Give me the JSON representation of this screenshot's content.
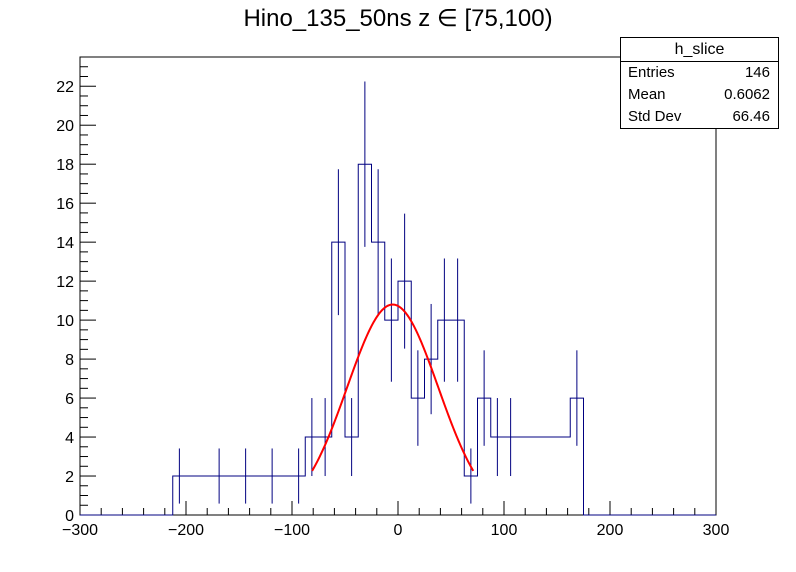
{
  "title": "Hino_135_50ns z  ∈ [75,100)",
  "stats": {
    "name": "h_slice",
    "rows": [
      {
        "label": "Entries",
        "value": "146"
      },
      {
        "label": "Mean",
        "value": "0.6062"
      },
      {
        "label": "Std Dev",
        "value": "66.46"
      }
    ]
  },
  "chart_data": {
    "type": "histogram",
    "xlim": [
      -300,
      300
    ],
    "ylim": [
      0,
      23.5
    ],
    "xticks": [
      -300,
      -200,
      -100,
      0,
      100,
      200,
      300
    ],
    "yticks": [
      0,
      2,
      4,
      6,
      8,
      10,
      12,
      14,
      16,
      18,
      20,
      22
    ],
    "bin_width": 12.5,
    "bins": [
      {
        "x": -206.25,
        "y": 2
      },
      {
        "x": -168.75,
        "y": 2
      },
      {
        "x": -143.75,
        "y": 2
      },
      {
        "x": -118.75,
        "y": 2
      },
      {
        "x": -93.75,
        "y": 2
      },
      {
        "x": -81.25,
        "y": 4
      },
      {
        "x": -68.75,
        "y": 4
      },
      {
        "x": -56.25,
        "y": 14
      },
      {
        "x": -43.75,
        "y": 4
      },
      {
        "x": -31.25,
        "y": 18
      },
      {
        "x": -18.75,
        "y": 14
      },
      {
        "x": -6.25,
        "y": 10
      },
      {
        "x": 6.25,
        "y": 12
      },
      {
        "x": 18.75,
        "y": 6
      },
      {
        "x": 31.25,
        "y": 8
      },
      {
        "x": 43.75,
        "y": 10
      },
      {
        "x": 56.25,
        "y": 10
      },
      {
        "x": 68.75,
        "y": 2
      },
      {
        "x": 81.25,
        "y": 6
      },
      {
        "x": 93.75,
        "y": 4
      },
      {
        "x": 106.25,
        "y": 4
      },
      {
        "x": 168.75,
        "y": 6
      }
    ],
    "fit": {
      "type": "gaussian",
      "constant": 10.8,
      "mean": -5,
      "sigma": 43,
      "range": [
        -81,
        71
      ],
      "color": "#ff0000"
    },
    "line_color": "#000080"
  }
}
